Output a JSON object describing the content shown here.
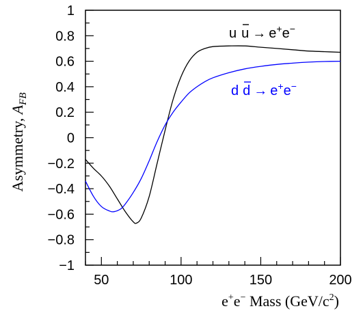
{
  "chart_data": {
    "type": "line",
    "xlabel": "e⁺e⁻ Mass (GeV/c²)",
    "ylabel": "Asymmetry, A_FB",
    "ylabel_main": "Asymmetry, ",
    "ylabel_var": "A",
    "ylabel_sub": "FB",
    "xlim": [
      40,
      200
    ],
    "ylim": [
      -1,
      1
    ],
    "x_ticks": [
      50,
      100,
      150,
      200
    ],
    "x_tick_labels": [
      "50",
      "100",
      "150",
      "200"
    ],
    "y_ticks": [
      -1,
      -0.8,
      -0.6,
      -0.4,
      -0.2,
      0,
      0.2,
      0.4,
      0.6,
      0.8,
      1
    ],
    "y_tick_labels": [
      "−1",
      "−0.8",
      "−0.6",
      "−0.4",
      "−0.2",
      "0",
      "0.2",
      "0.4",
      "0.6",
      "0.8",
      "1"
    ],
    "grid": false,
    "series": [
      {
        "name": "u ū → e⁺e⁻",
        "color": "#000000",
        "x": [
          40,
          45,
          50,
          55,
          60,
          65,
          70,
          72,
          75,
          80,
          85,
          90,
          95,
          100,
          105,
          110,
          115,
          120,
          130,
          140,
          150,
          160,
          170,
          180,
          190,
          200
        ],
        "y": [
          -0.17,
          -0.24,
          -0.3,
          -0.38,
          -0.48,
          -0.58,
          -0.66,
          -0.67,
          -0.63,
          -0.46,
          -0.2,
          0.06,
          0.3,
          0.48,
          0.6,
          0.67,
          0.7,
          0.715,
          0.72,
          0.72,
          0.71,
          0.7,
          0.69,
          0.68,
          0.675,
          0.67
        ]
      },
      {
        "name": "d d̄ → e⁺e⁻",
        "color": "#0000ff",
        "x": [
          40,
          45,
          50,
          55,
          58,
          62,
          65,
          70,
          75,
          80,
          85,
          90,
          95,
          100,
          105,
          110,
          115,
          120,
          130,
          140,
          150,
          160,
          170,
          180,
          190,
          200
        ],
        "y": [
          -0.34,
          -0.46,
          -0.54,
          -0.575,
          -0.58,
          -0.56,
          -0.52,
          -0.43,
          -0.32,
          -0.18,
          -0.03,
          0.1,
          0.2,
          0.28,
          0.35,
          0.4,
          0.44,
          0.47,
          0.51,
          0.54,
          0.56,
          0.575,
          0.585,
          0.593,
          0.598,
          0.6
        ]
      }
    ]
  },
  "annotations": {
    "uu": {
      "q1": "u",
      "q2": "u",
      "arrow": "→",
      "e1": "e",
      "plus": "+",
      "e2": "e",
      "minus": "−"
    },
    "dd": {
      "q1": "d",
      "q2": "d",
      "arrow": "→",
      "e1": "e",
      "plus": "+",
      "e2": "e",
      "minus": "−"
    }
  },
  "xlabel_parts": {
    "e1": "e",
    "plus": "+",
    "e2": "e",
    "minus": "−",
    "text": " Mass (GeV/c",
    "sup2": "2",
    "close": ")"
  }
}
